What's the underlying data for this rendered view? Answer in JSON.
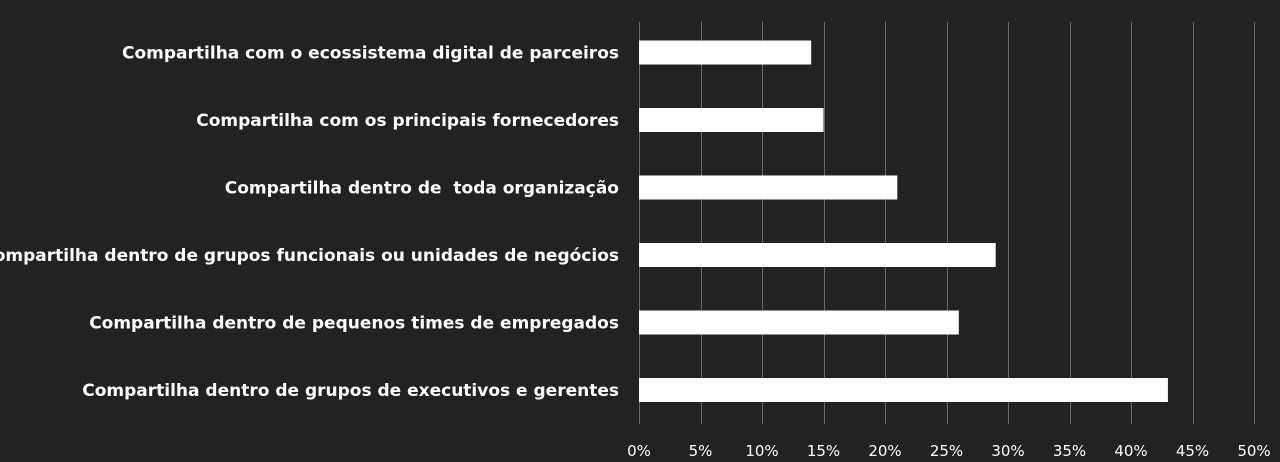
{
  "chart_data": {
    "type": "bar",
    "orientation": "horizontal",
    "categories": [
      "Compartilha com o ecossistema digital de parceiros",
      "Compartilha com os principais fornecedores",
      "Compartilha dentro de  toda organização",
      "Compartilha dentro de grupos funcionais ou unidades de negócios",
      "Compartilha dentro de pequenos times de empregados",
      "Compartilha dentro de grupos de executivos e gerentes"
    ],
    "values": [
      14,
      15,
      21,
      29,
      26,
      43
    ],
    "xlim": [
      0,
      50
    ],
    "x_ticks": [
      0,
      5,
      10,
      15,
      20,
      25,
      30,
      35,
      40,
      45,
      50
    ],
    "tick_labels": [
      "0%",
      "5%",
      "10%",
      "15%",
      "20%",
      "25%",
      "30%",
      "35%",
      "40%",
      "45%",
      "50%"
    ],
    "grid": "vertical",
    "legend": "none",
    "colors": {
      "background": "#222222",
      "bar": "#ffffff",
      "gridline": "#6a6a6a",
      "text": "#ffffff"
    }
  }
}
